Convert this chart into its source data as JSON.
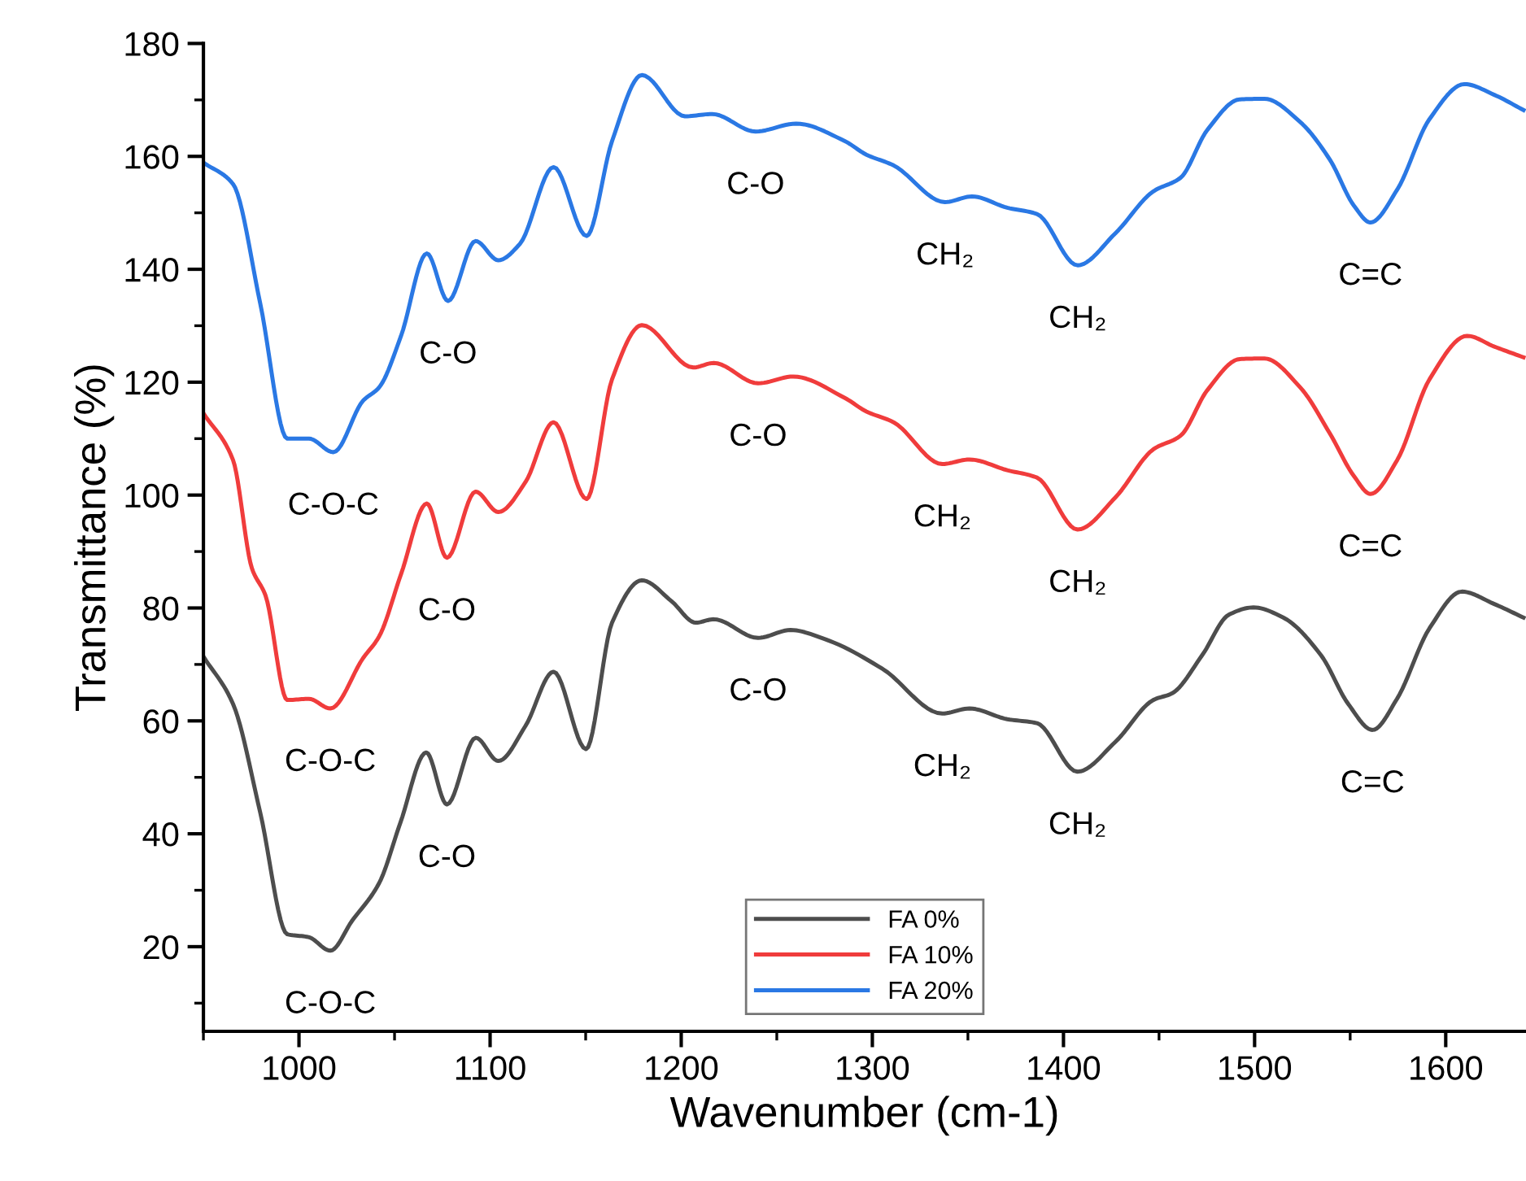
{
  "chart_data": {
    "type": "line",
    "xlabel": "Wavenumber (cm-1)",
    "ylabel": "Transmittance (%)",
    "xlim": [
      950,
      1642
    ],
    "ylim": [
      5,
      180
    ],
    "xticks": [
      {
        "value": 950,
        "label": null
      },
      1000,
      {
        "value": 1050,
        "label": null
      },
      1100,
      {
        "value": 1150,
        "label": null
      },
      1200,
      {
        "value": 1250,
        "label": null
      },
      1300,
      {
        "value": 1350,
        "label": null
      },
      1400,
      {
        "value": 1450,
        "label": null
      },
      1500,
      {
        "value": 1550,
        "label": null
      },
      1600
    ],
    "yticks": [
      {
        "value": 10,
        "label": null
      },
      20,
      {
        "value": 30,
        "label": null
      },
      40,
      {
        "value": 50,
        "label": null
      },
      60,
      {
        "value": 70,
        "label": null
      },
      80,
      {
        "value": 90,
        "label": null
      },
      100,
      {
        "value": 110,
        "label": null
      },
      120,
      {
        "value": 130,
        "label": null
      },
      140,
      {
        "value": 150,
        "label": null
      },
      160,
      {
        "value": 170,
        "label": null
      },
      180
    ],
    "grid": false,
    "legend": "bottom",
    "marker": "none",
    "line_style": "solid",
    "series": [
      {
        "name": "FA 0%",
        "color": "#4d4d4d",
        "x": [
          950,
          965.5,
          979.7,
          993.9,
          1005,
          1016.4,
          1027.8,
          1042,
          1053,
          1066.6,
          1077.4,
          1092.5,
          1104.3,
          1118.5,
          1133.2,
          1150.2,
          1163.8,
          1179.4,
          1194.9,
          1207.6,
          1217,
          1240.2,
          1257.2,
          1275,
          1305.4,
          1336.6,
          1350.8,
          1370.6,
          1386.1,
          1407.3,
          1427.2,
          1447,
          1456.9,
          1472.5,
          1486.5,
          1499.4,
          1515,
          1534.8,
          1549,
          1561.7,
          1574.5,
          1591.5,
          1608.4,
          1625.4,
          1640.7
        ],
        "values": [
          71.4,
          63,
          43.8,
          22.2,
          21.7,
          19.3,
          24.6,
          31.3,
          41.9,
          54.4,
          45.2,
          57,
          52.9,
          59.1,
          68.7,
          55,
          77.4,
          84.9,
          81.2,
          77.4,
          78,
          74.7,
          76.1,
          74.5,
          69.2,
          61.3,
          62.2,
          60.3,
          59.6,
          51,
          56.3,
          63.7,
          64.9,
          71.6,
          78.8,
          80.1,
          78.3,
          71.6,
          63,
          58.4,
          63.9,
          76.4,
          82.9,
          80.7,
          78.3
        ]
      },
      {
        "name": "FA 10%",
        "color": "#f03c3c",
        "x": [
          950,
          965.5,
          975.4,
          982.5,
          993.9,
          1005.2,
          1016.4,
          1033.5,
          1042,
          1053.4,
          1066.9,
          1077.4,
          1092.4,
          1104.3,
          1118.5,
          1133.2,
          1150.5,
          1163.8,
          1179.4,
          1206.3,
          1217,
          1240.2,
          1258.6,
          1285.6,
          1296.9,
          1311.1,
          1336.6,
          1350.8,
          1370.6,
          1386.1,
          1407.4,
          1427.2,
          1447,
          1461.2,
          1475.3,
          1492.3,
          1505.1,
          1523.8,
          1539.4,
          1552.1,
          1560.6,
          1574.6,
          1591.5,
          1611.2,
          1625.4,
          1640.7
        ],
        "values": [
          114.5,
          106.2,
          87,
          82.2,
          63.7,
          63.9,
          62.2,
          71.1,
          75,
          86,
          98.5,
          88.9,
          100.6,
          97,
          102.3,
          112.9,
          99.3,
          120.5,
          130.1,
          122.6,
          123.4,
          119.8,
          121,
          117.2,
          114.8,
          112.9,
          105.5,
          106.3,
          104.4,
          103.1,
          93.9,
          99.6,
          108.1,
          110.5,
          118.6,
          124.1,
          124.2,
          119.1,
          110.9,
          103.3,
          100.2,
          106.2,
          120.5,
          128.2,
          126.3,
          124.4
        ]
      },
      {
        "name": "FA 20%",
        "color": "#2a78e4",
        "x": [
          950,
          965.5,
          979.7,
          993.9,
          1005.2,
          1018,
          1033.5,
          1042,
          1053.4,
          1066.9,
          1078,
          1092.4,
          1104.3,
          1115.6,
          1133.2,
          1150.5,
          1163.8,
          1179.4,
          1202,
          1216.2,
          1238.9,
          1260.1,
          1285.6,
          1296.9,
          1311.1,
          1338,
          1352.1,
          1370.6,
          1386.1,
          1407.4,
          1427.2,
          1447,
          1461.2,
          1475.3,
          1492.3,
          1505.1,
          1523.8,
          1539.4,
          1552.1,
          1560.6,
          1574.6,
          1591.5,
          1609.8,
          1625.4,
          1640.7
        ],
        "values": [
          158.9,
          155.1,
          134,
          110,
          110,
          107.6,
          116.7,
          119.1,
          128.2,
          142.8,
          134.4,
          145,
          141.6,
          144.5,
          158.1,
          145.9,
          162.7,
          174.4,
          167.1,
          167.5,
          164.4,
          165.8,
          162.7,
          160.3,
          158.4,
          151.9,
          152.9,
          150.9,
          149.8,
          140.7,
          146.4,
          153.8,
          156.2,
          164.7,
          170.1,
          170.2,
          166.1,
          159.4,
          151.2,
          148.3,
          154.1,
          166.6,
          172.8,
          170.9,
          168.2
        ]
      }
    ],
    "annotations": [
      {
        "text": "C-O-C",
        "x": 1016.4,
        "y": 19.3
      },
      {
        "text": "C-O",
        "x": 1077.4,
        "y": 45.2
      },
      {
        "text": "C-O",
        "x": 1240.2,
        "y": 74.7
      },
      {
        "text": "CH₂",
        "x": 1336.6,
        "y": 61.3
      },
      {
        "text": "CH₂",
        "x": 1407.3,
        "y": 51
      },
      {
        "text": "C=C",
        "x": 1561.7,
        "y": 58.4
      },
      {
        "text": "C-O-C",
        "x": 1016.4,
        "y": 62.2
      },
      {
        "text": "C-O",
        "x": 1077.4,
        "y": 88.9
      },
      {
        "text": "C-O",
        "x": 1240.2,
        "y": 119.8
      },
      {
        "text": "CH₂",
        "x": 1336.6,
        "y": 105.5
      },
      {
        "text": "CH₂",
        "x": 1407.4,
        "y": 93.9
      },
      {
        "text": "C=C",
        "x": 1560.6,
        "y": 100.2
      },
      {
        "text": "C-O-C",
        "x": 1018,
        "y": 107.6
      },
      {
        "text": "C-O",
        "x": 1078,
        "y": 134.4
      },
      {
        "text": "C-O",
        "x": 1238.9,
        "y": 164.4
      },
      {
        "text": "CH₂",
        "x": 1338,
        "y": 151.9
      },
      {
        "text": "CH₂",
        "x": 1407.4,
        "y": 140.7
      },
      {
        "text": "C=C",
        "x": 1560.6,
        "y": 148.3
      }
    ]
  }
}
